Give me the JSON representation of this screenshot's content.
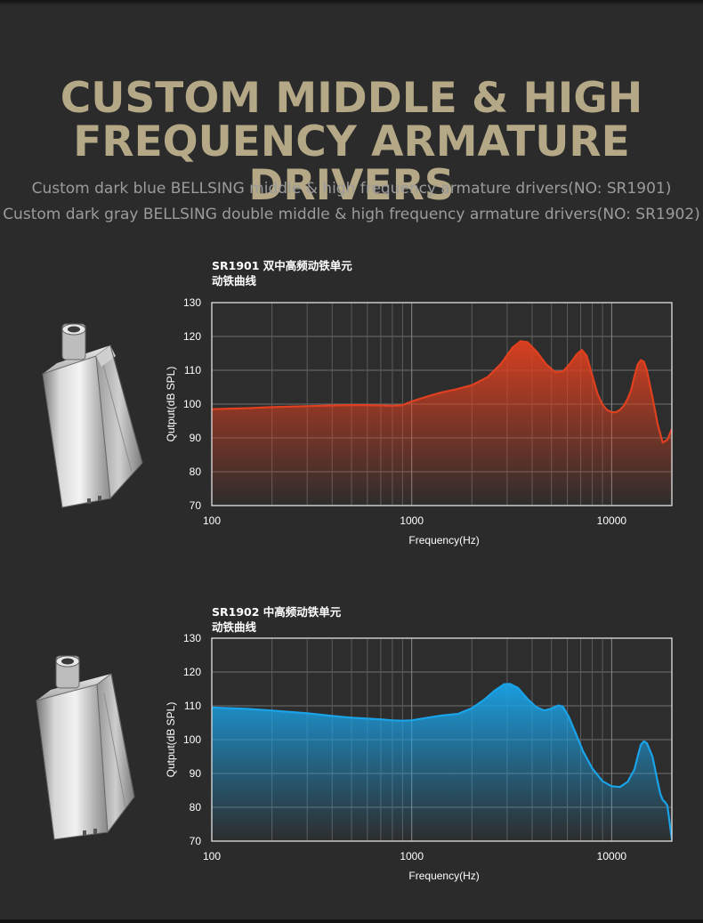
{
  "headline": {
    "line1": "CUSTOM MIDDLE & HIGH",
    "line2": "FREQUENCY ARMATURE DRIVERS"
  },
  "subtitles": [
    "Custom dark blue BELLSING middle & high frequency armature drivers(NO: SR1901)",
    "Custom dark gray BELLSING double middle & high frequency armature drivers(NO: SR1902)"
  ],
  "chart_data": [
    {
      "type": "area",
      "title": "SR1901 双中高频动铁单元",
      "subtitle": "动铁曲线",
      "xlabel": "Frequency(Hz)",
      "ylabel": "Qutput(dB SPL)",
      "x_scale": "log",
      "xlim": [
        100,
        20000
      ],
      "ylim": [
        70,
        130
      ],
      "x_ticks": [
        "100",
        "1000",
        "10000"
      ],
      "y_ticks": [
        "130",
        "120",
        "110",
        "100",
        "90",
        "80",
        "70"
      ],
      "grid": true,
      "fill_color": "#e0401f",
      "series": [
        {
          "x": [
            100,
            150,
            200,
            300,
            400,
            500,
            600,
            700,
            800,
            900,
            1000,
            1200,
            1400,
            1700,
            2000,
            2400,
            2800,
            3200,
            3500,
            3800,
            4200,
            4700,
            5200,
            5700,
            6200,
            6700,
            7100,
            7500,
            8000,
            8500,
            9000,
            9500,
            10000,
            10500,
            11000,
            11500,
            12000,
            12500,
            13000,
            13500,
            14000,
            14500,
            15000,
            16000,
            17000,
            18000,
            19000,
            20000
          ],
          "y": [
            98.5,
            98.8,
            99.1,
            99.4,
            99.6,
            99.7,
            99.7,
            99.6,
            99.5,
            99.7,
            100.8,
            102.3,
            103.4,
            104.5,
            105.6,
            108,
            112,
            116.8,
            118.6,
            118.3,
            115.6,
            111.8,
            109.5,
            109.6,
            112,
            114.8,
            116,
            114.3,
            108.4,
            103,
            99.8,
            98.2,
            97.6,
            97.6,
            98.3,
            99.5,
            101.5,
            104,
            108.3,
            111.7,
            113,
            112.5,
            110,
            102,
            94,
            88.6,
            89.5,
            92.6
          ]
        }
      ]
    },
    {
      "type": "area",
      "title": "SR1902 中高频动铁单元",
      "subtitle": "动铁曲线",
      "xlabel": "Frequency(Hz)",
      "ylabel": "Qutput(dB SPL)",
      "x_scale": "log",
      "xlim": [
        100,
        20000
      ],
      "ylim": [
        70,
        130
      ],
      "x_ticks": [
        "100",
        "1000",
        "10000"
      ],
      "y_ticks": [
        "130",
        "120",
        "110",
        "100",
        "90",
        "80",
        "70"
      ],
      "grid": true,
      "fill_color": "#1aa3e8",
      "series": [
        {
          "x": [
            100,
            150,
            200,
            300,
            400,
            500,
            600,
            700,
            800,
            900,
            1000,
            1200,
            1400,
            1700,
            2000,
            2300,
            2600,
            2900,
            3100,
            3400,
            3800,
            4200,
            4600,
            5000,
            5400,
            5700,
            6100,
            6600,
            7200,
            8000,
            9000,
            10000,
            11000,
            12000,
            13000,
            13500,
            14000,
            14500,
            15000,
            16000,
            17000,
            17500,
            18000,
            18500,
            19000,
            20000
          ],
          "y": [
            109.5,
            109.1,
            108.6,
            107.8,
            107,
            106.5,
            106.2,
            106,
            105.7,
            105.6,
            105.7,
            106.5,
            107.1,
            107.6,
            109.3,
            111.8,
            114.5,
            116.4,
            116.5,
            115.3,
            112,
            109.6,
            108.6,
            109.2,
            110.1,
            109.8,
            106.8,
            102,
            96.5,
            91.5,
            87.7,
            86.2,
            86,
            87.5,
            91.2,
            95,
            98.5,
            99.5,
            99,
            95,
            87.5,
            84,
            82.2,
            81.5,
            80.5,
            70.5
          ]
        }
      ]
    }
  ]
}
